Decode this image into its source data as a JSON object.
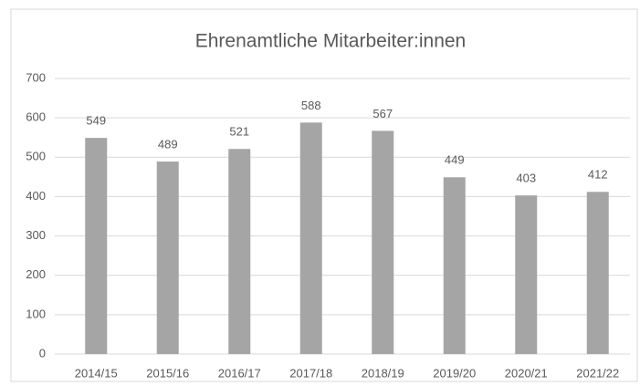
{
  "chart_data": {
    "type": "bar",
    "title": "Ehrenamtliche Mitarbeiter:innen",
    "categories": [
      "2014/15",
      "2015/16",
      "2016/17",
      "2017/18",
      "2018/19",
      "2019/20",
      "2020/21",
      "2021/22"
    ],
    "values": [
      549,
      489,
      521,
      588,
      567,
      449,
      403,
      412
    ],
    "color": "#a5a5a5",
    "ylim": [
      0,
      700
    ],
    "yticks": [
      0,
      100,
      200,
      300,
      400,
      500,
      600,
      700
    ],
    "grid": true
  }
}
